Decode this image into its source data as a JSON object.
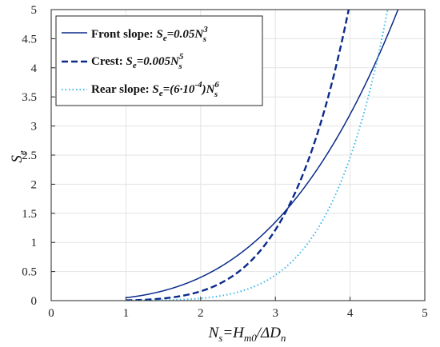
{
  "chart_data": {
    "type": "line",
    "xlim": [
      0,
      5
    ],
    "ylim": [
      0,
      5
    ],
    "x_ticks": [
      0,
      1,
      2,
      3,
      4,
      5
    ],
    "y_ticks": [
      0,
      0.5,
      1,
      1.5,
      2,
      2.5,
      3,
      3.5,
      4,
      4.5,
      5
    ],
    "x_tick_labels": [
      "0",
      "1",
      "2",
      "3",
      "4",
      "5"
    ],
    "y_tick_labels": [
      "0",
      "0.5",
      "1",
      "1.5",
      "2",
      "2.5",
      "3",
      "3.5",
      "4",
      "4.5",
      "5"
    ],
    "xlabel": "N_s=H_m0/ΔD_n",
    "ylabel": "S_e",
    "grid": true,
    "legend_position": "top-left",
    "series": [
      {
        "name": "Front slope: S_e=0.05N_s^3",
        "label_prefix": "Front slope:",
        "equation": "S_e=0.05N_s^3",
        "coefficient": 0.05,
        "exponent": 3,
        "x_start": 1,
        "style": "solid",
        "color": "#0a2a8a"
      },
      {
        "name": "Crest: S_e=0.005N_s^5",
        "label_prefix": "Crest:",
        "equation": "S_e=0.005N_s^5",
        "coefficient": 0.005,
        "exponent": 5,
        "x_start": 1,
        "style": "dashed",
        "color": "#0a2a8a"
      },
      {
        "name": "Rear slope: S_e=(6·10^-4)N_s^6",
        "label_prefix": "Rear slope:",
        "equation": "S_e=(6·10^-4)N_s^6",
        "coefficient": 0.0006,
        "exponent": 6,
        "x_start": 1,
        "style": "dotted",
        "color": "#3db8e8"
      }
    ]
  }
}
